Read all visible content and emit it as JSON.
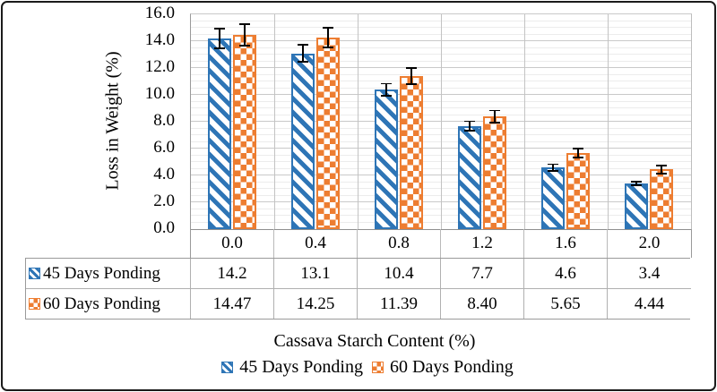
{
  "colors": {
    "series1_blue": "#2e75b6",
    "series2_orange": "#ed7d31",
    "grid_major": "#c9c9c9",
    "grid_minor": "#ececec",
    "axis_line": "#9a9a9a",
    "error_bar": "#000000",
    "frame": "#1b1b1b"
  },
  "chart_data": {
    "type": "bar",
    "title": "",
    "xlabel": "Cassava Starch Content (%)",
    "ylabel": "Loss in Weight (%)",
    "ylim": [
      0,
      16
    ],
    "major_unit": 2,
    "minor_unit": 0.5,
    "grid": "horizontal major+minor gridlines, vertical category separators",
    "legend_position": "bottom",
    "data_table_shown": true,
    "ytick_labels": [
      "16.0",
      "14.0",
      "12.0",
      "10.0",
      "8.0",
      "6.0",
      "4.0",
      "2.0",
      "0.0"
    ],
    "categories": [
      "0.0",
      "0.4",
      "0.8",
      "1.2",
      "1.6",
      "2.0"
    ],
    "series": [
      {
        "name": "45 Days Ponding",
        "pattern": "wide-diagonal-stripes",
        "color": "#2e75b6",
        "values": [
          14.2,
          13.1,
          10.4,
          7.7,
          4.6,
          3.4
        ],
        "display": [
          "14.2",
          "13.1",
          "10.4",
          "7.7",
          "4.6",
          "3.4"
        ],
        "errors": [
          0.8,
          0.7,
          0.5,
          0.4,
          0.3,
          0.2
        ]
      },
      {
        "name": "60 Days Ponding",
        "pattern": "checkerboard",
        "color": "#ed7d31",
        "values": [
          14.47,
          14.25,
          11.39,
          8.4,
          5.65,
          4.44
        ],
        "display": [
          "14.47",
          "14.25",
          "11.39",
          "8.40",
          "5.65",
          "4.44"
        ],
        "errors": [
          0.85,
          0.8,
          0.65,
          0.5,
          0.4,
          0.35
        ]
      }
    ]
  }
}
